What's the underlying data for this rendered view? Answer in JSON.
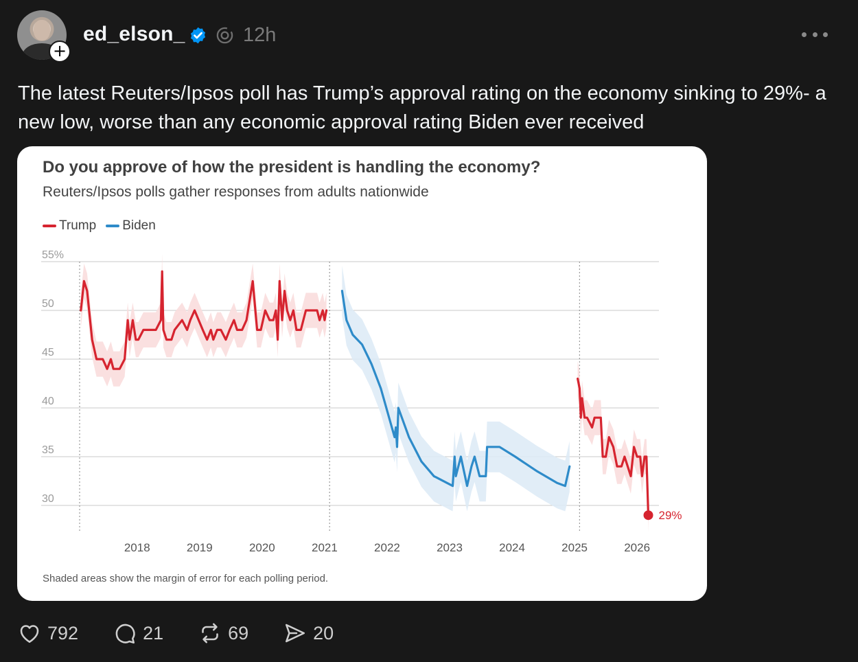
{
  "post": {
    "username": "ed_elson_",
    "timestamp": "12h",
    "text": "The latest Reuters/Ipsos poll has Trump’s approval rating on the economy sinking to 29%- a new low, worse than any economic approval rating Biden ever received"
  },
  "icons": {
    "verified": "verified-badge-icon",
    "threads": "threads-icon",
    "more": "more-icon",
    "like": "heart-icon",
    "reply": "comment-icon",
    "repost": "repost-icon",
    "share": "send-icon",
    "follow": "plus-icon"
  },
  "colors": {
    "trump": "#d6242f",
    "biden": "#2e8bc9",
    "trump_band": "#fadddd",
    "biden_band": "#deebf6"
  },
  "stats": {
    "likes": "792",
    "replies": "21",
    "reposts": "69",
    "shares": "20"
  },
  "chart_data": {
    "type": "line",
    "title": "Do you approve of how the president is handling the economy?",
    "subtitle": "Reuters/Ipsos polls gather responses from adults nationwide",
    "note": "Shaded areas show the margin of error for each polling period.",
    "y_ticks": [
      "55%",
      "50",
      "45",
      "40",
      "35",
      "30"
    ],
    "ylim": [
      25,
      55
    ],
    "x_ticks": [
      "2018",
      "2019",
      "2020",
      "2021",
      "2022",
      "2023",
      "2024",
      "2025",
      "2026"
    ],
    "xlim": [
      2017.08,
      2026.35
    ],
    "grid": true,
    "legend": "top-left",
    "end_label": "29%",
    "series": [
      {
        "name": "Trump",
        "color": "#d6242f",
        "points": [
          [
            2017.1,
            50
          ],
          [
            2017.15,
            53
          ],
          [
            2017.2,
            52
          ],
          [
            2017.28,
            47
          ],
          [
            2017.35,
            45
          ],
          [
            2017.45,
            45
          ],
          [
            2017.52,
            44
          ],
          [
            2017.58,
            45
          ],
          [
            2017.62,
            44
          ],
          [
            2017.72,
            44
          ],
          [
            2017.8,
            45
          ],
          [
            2017.85,
            49
          ],
          [
            2017.88,
            47
          ],
          [
            2017.93,
            49
          ],
          [
            2017.98,
            47
          ],
          [
            2018.02,
            47
          ],
          [
            2018.1,
            48
          ],
          [
            2018.3,
            48
          ],
          [
            2018.38,
            49
          ],
          [
            2018.4,
            54
          ],
          [
            2018.42,
            48
          ],
          [
            2018.47,
            47
          ],
          [
            2018.55,
            47
          ],
          [
            2018.6,
            48
          ],
          [
            2018.72,
            49
          ],
          [
            2018.8,
            48
          ],
          [
            2018.85,
            49
          ],
          [
            2018.92,
            50
          ],
          [
            2019.05,
            48
          ],
          [
            2019.12,
            47
          ],
          [
            2019.18,
            48
          ],
          [
            2019.22,
            47
          ],
          [
            2019.28,
            48
          ],
          [
            2019.34,
            48
          ],
          [
            2019.42,
            47
          ],
          [
            2019.48,
            48
          ],
          [
            2019.55,
            49
          ],
          [
            2019.6,
            48
          ],
          [
            2019.68,
            48
          ],
          [
            2019.75,
            49
          ],
          [
            2019.85,
            53
          ],
          [
            2019.92,
            48
          ],
          [
            2019.98,
            48
          ],
          [
            2020.05,
            50
          ],
          [
            2020.12,
            49
          ],
          [
            2020.18,
            49
          ],
          [
            2020.22,
            50
          ],
          [
            2020.25,
            47
          ],
          [
            2020.28,
            53
          ],
          [
            2020.32,
            49
          ],
          [
            2020.36,
            52
          ],
          [
            2020.4,
            50
          ],
          [
            2020.45,
            49
          ],
          [
            2020.5,
            50
          ],
          [
            2020.55,
            48
          ],
          [
            2020.62,
            48
          ],
          [
            2020.7,
            50
          ],
          [
            2020.8,
            50
          ],
          [
            2020.88,
            50
          ],
          [
            2020.92,
            49
          ],
          [
            2020.97,
            50
          ],
          [
            2021.0,
            49
          ],
          [
            2021.03,
            50
          ]
        ]
      },
      {
        "name": "Biden",
        "color": "#2e8bc9",
        "points": [
          [
            2021.28,
            52
          ],
          [
            2021.35,
            49
          ],
          [
            2021.45,
            47.5
          ],
          [
            2021.6,
            46.5
          ],
          [
            2021.75,
            44.5
          ],
          [
            2021.9,
            42
          ],
          [
            2022.12,
            37
          ],
          [
            2022.14,
            38
          ],
          [
            2022.16,
            36
          ],
          [
            2022.18,
            40
          ],
          [
            2022.35,
            37
          ],
          [
            2022.55,
            34.5
          ],
          [
            2022.75,
            33
          ],
          [
            2023.05,
            32
          ],
          [
            2023.08,
            35
          ],
          [
            2023.1,
            33
          ],
          [
            2023.18,
            35
          ],
          [
            2023.28,
            32
          ],
          [
            2023.35,
            34
          ],
          [
            2023.4,
            35
          ],
          [
            2023.48,
            33
          ],
          [
            2023.58,
            33
          ],
          [
            2023.6,
            36
          ],
          [
            2023.8,
            36
          ],
          [
            2024.05,
            35
          ],
          [
            2024.4,
            33.5
          ],
          [
            2024.72,
            32.3
          ],
          [
            2024.85,
            32
          ],
          [
            2024.92,
            34
          ]
        ]
      },
      {
        "name": "Trump",
        "color": "#d6242f",
        "points": [
          [
            2025.05,
            43
          ],
          [
            2025.08,
            42
          ],
          [
            2025.1,
            39
          ],
          [
            2025.12,
            41
          ],
          [
            2025.16,
            39
          ],
          [
            2025.2,
            39
          ],
          [
            2025.28,
            38
          ],
          [
            2025.32,
            39
          ],
          [
            2025.42,
            39
          ],
          [
            2025.45,
            35
          ],
          [
            2025.5,
            35
          ],
          [
            2025.55,
            37
          ],
          [
            2025.62,
            36
          ],
          [
            2025.68,
            34
          ],
          [
            2025.75,
            34
          ],
          [
            2025.8,
            35
          ],
          [
            2025.85,
            34
          ],
          [
            2025.9,
            33
          ],
          [
            2025.95,
            36
          ],
          [
            2026.0,
            35
          ],
          [
            2026.05,
            35
          ],
          [
            2026.08,
            33
          ],
          [
            2026.12,
            35
          ],
          [
            2026.15,
            35
          ],
          [
            2026.18,
            29
          ]
        ]
      }
    ]
  }
}
